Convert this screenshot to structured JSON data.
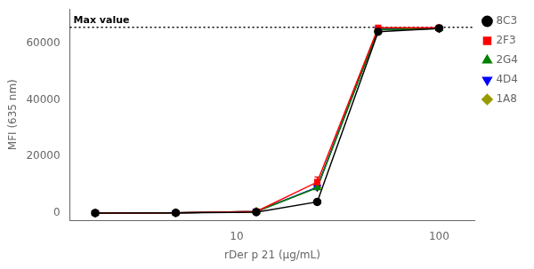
{
  "chart_data": {
    "type": "line",
    "log": "x",
    "x": [
      2,
      5,
      12.5,
      25,
      50,
      100
    ],
    "series": [
      {
        "name": "8C3",
        "color": "#000000",
        "marker": "circle",
        "values": [
          80,
          150,
          400,
          4000,
          64000,
          65200
        ],
        "yerr": [
          30,
          50,
          100,
          300,
          300,
          200
        ]
      },
      {
        "name": "2F3",
        "color": "#FF0000",
        "marker": "square",
        "values": [
          80,
          150,
          600,
          11000,
          65400,
          65400
        ],
        "yerr": [
          30,
          50,
          150,
          1800,
          700,
          200
        ]
      },
      {
        "name": "2G4",
        "color": "#008000",
        "marker": "triangle",
        "values": [
          80,
          150,
          600,
          9000,
          64800,
          65100
        ],
        "yerr": [
          30,
          50,
          150,
          400,
          300,
          150
        ]
      },
      {
        "name": "4D4",
        "color": "#0000FF",
        "marker": "triangle_down",
        "values": [
          80,
          150,
          600,
          9200,
          64900,
          65200
        ],
        "yerr": [
          30,
          50,
          150,
          400,
          300,
          150
        ]
      },
      {
        "name": "1A8",
        "color": "#999900",
        "marker": "diamond",
        "values": [
          80,
          150,
          600,
          9100,
          64700,
          65100
        ],
        "yerr": [
          30,
          50,
          150,
          400,
          300,
          150
        ]
      }
    ],
    "annotations": [
      {
        "text": "Max value",
        "y": 65535,
        "color": "#000000",
        "line_style": "dotted"
      }
    ],
    "xlabel": "rDer p 21 (µg/mL)",
    "ylabel": "MFI (635 nm)",
    "xlim": [
      1.5,
      150
    ],
    "xticks": [
      10,
      100
    ],
    "ylim": [
      -2500,
      72000
    ],
    "yticks": [
      0,
      20000,
      40000,
      60000
    ],
    "grid": false,
    "legend": "right"
  }
}
